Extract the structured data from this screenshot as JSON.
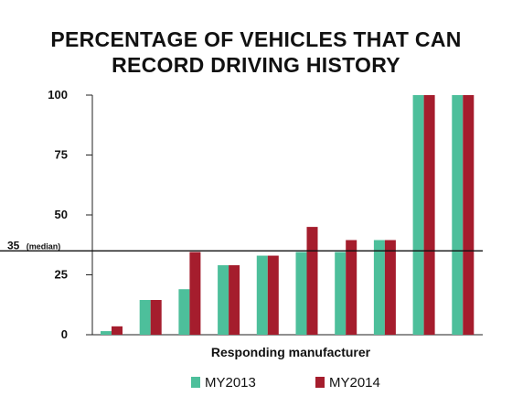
{
  "chart_data": {
    "type": "bar",
    "title_lines": [
      "PERCENTAGE OF VEHICLES THAT CAN",
      "RECORD DRIVING HISTORY"
    ],
    "xlabel": "Responding manufacturer",
    "ylabel": "",
    "ylim": [
      0,
      100
    ],
    "yticks": [
      0,
      25,
      50,
      75,
      100
    ],
    "ytick_labels": [
      "0",
      "25",
      "50",
      "75",
      "100"
    ],
    "categories": [
      "",
      "",
      "",
      "",
      "",
      "",
      "",
      "",
      "",
      ""
    ],
    "series": [
      {
        "name": "MY2013",
        "color": "#4dbf9b",
        "values": [
          1.5,
          14.5,
          19,
          29,
          33,
          34.5,
          34.5,
          39.5,
          100,
          100
        ]
      },
      {
        "name": "MY2014",
        "color": "#a51d2d",
        "values": [
          3.5,
          14.5,
          34.5,
          29,
          33,
          45,
          39.5,
          39.5,
          100,
          100
        ]
      }
    ],
    "reference_line": {
      "value": 35,
      "label": "35",
      "label_note": "(median)"
    },
    "grid": false,
    "legend_position": "bottom"
  }
}
